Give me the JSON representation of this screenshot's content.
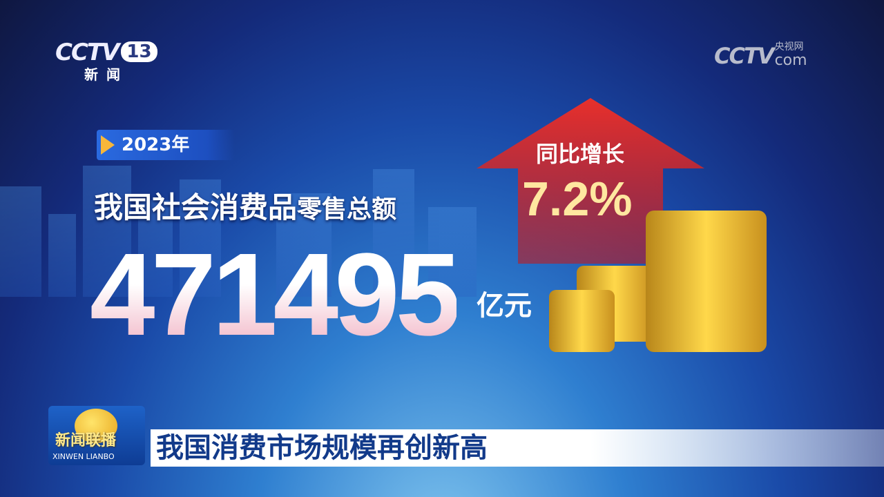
{
  "channel_logo": {
    "brand": "CCTV",
    "number": "13",
    "subtitle": "新闻"
  },
  "watermark": {
    "brand": "CCTV",
    "cn": "央视网",
    "domain": "com"
  },
  "infographic": {
    "year": "2023年",
    "headline_main": "我国社会消费品",
    "headline_small": "零售总额",
    "value": "471495",
    "unit": "亿元",
    "growth_label": "同比增长",
    "growth_value": "7.2%",
    "colors": {
      "arrow": "#d8262a",
      "value_text": "#ffffff",
      "tag": "#2a6ae0"
    }
  },
  "lower_third": {
    "program_cn": "新闻联播",
    "program_en": "XINWEN LIANBO",
    "title": "我国消费市场规模再创新高"
  }
}
